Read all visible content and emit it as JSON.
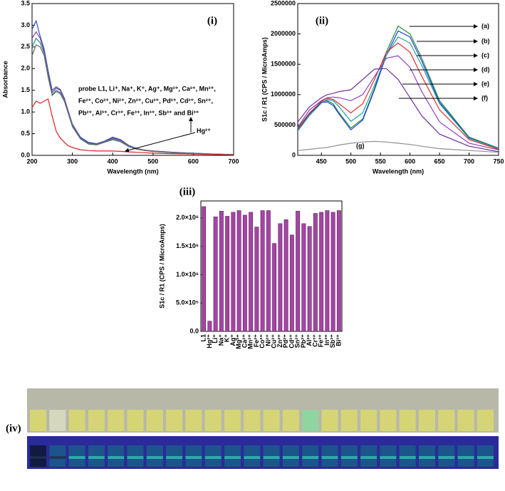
{
  "chart_data": [
    {
      "type": "line",
      "title": "(i)",
      "x_label": "Wavelength (nm)",
      "y_label": "Absorbance",
      "x": [
        200,
        210,
        220,
        230,
        240,
        250,
        260,
        270,
        280,
        290,
        300,
        320,
        340,
        360,
        380,
        400,
        420,
        440,
        460,
        480,
        500,
        550,
        600,
        650,
        700
      ],
      "series": [
        {
          "color": "#3050c0",
          "values": [
            2.9,
            3.1,
            2.75,
            2.45,
            1.95,
            1.5,
            1.58,
            1.52,
            1.32,
            1.02,
            0.72,
            0.42,
            0.3,
            0.27,
            0.33,
            0.42,
            0.36,
            0.23,
            0.16,
            0.12,
            0.1,
            0.07,
            0.05,
            0.03,
            0.02
          ]
        },
        {
          "color": "#8a3a9a",
          "values": [
            2.7,
            2.85,
            2.7,
            2.4,
            1.9,
            1.45,
            1.55,
            1.5,
            1.3,
            1.0,
            0.7,
            0.4,
            0.28,
            0.26,
            0.32,
            0.4,
            0.35,
            0.22,
            0.15,
            0.12,
            0.1,
            0.07,
            0.05,
            0.03,
            0.02
          ]
        },
        {
          "color": "#2a8a8a",
          "values": [
            2.5,
            2.7,
            2.6,
            2.35,
            1.85,
            1.4,
            1.5,
            1.45,
            1.27,
            0.98,
            0.68,
            0.39,
            0.27,
            0.25,
            0.31,
            0.38,
            0.33,
            0.21,
            0.15,
            0.11,
            0.09,
            0.06,
            0.05,
            0.03,
            0.02
          ]
        },
        {
          "color": "#6a6a6a",
          "values": [
            2.3,
            2.55,
            2.5,
            2.3,
            1.8,
            1.38,
            1.47,
            1.42,
            1.25,
            0.96,
            0.66,
            0.38,
            0.26,
            0.24,
            0.3,
            0.36,
            0.31,
            0.2,
            0.14,
            0.11,
            0.09,
            0.06,
            0.04,
            0.03,
            0.02
          ]
        },
        {
          "color": "#e02020",
          "values": [
            1.1,
            1.25,
            1.2,
            1.25,
            1.3,
            0.9,
            0.55,
            0.4,
            0.3,
            0.22,
            0.18,
            0.13,
            0.11,
            0.1,
            0.1,
            0.1,
            0.09,
            0.08,
            0.07,
            0.06,
            0.05,
            0.04,
            0.03,
            0.02,
            0.01
          ]
        }
      ],
      "xlim": [
        200,
        700
      ],
      "xticks": [
        200,
        300,
        400,
        500,
        600,
        700
      ],
      "ylim": [
        0,
        3.5
      ],
      "yticks": [
        {
          "value": 0,
          "label": "0.0"
        },
        {
          "value": 0.5,
          "label": "0.5"
        },
        {
          "value": 1,
          "label": "1.0"
        },
        {
          "value": 1.5,
          "label": "1.5"
        },
        {
          "value": 2,
          "label": "2.0"
        },
        {
          "value": 2.5,
          "label": "2.5"
        },
        {
          "value": 3,
          "label": "3.0"
        },
        {
          "value": 3.5,
          "label": "3.5"
        }
      ],
      "annotations": [
        "probe L1, Li⁺, Na⁺, K⁺, Ag⁺, Mg²⁺, Ca²⁺, Mn²⁺,",
        "Fe²⁺, Co²⁺, Ni²⁺, Zn²⁺, Cu²⁺, Pd²⁺, Cd²⁺, Sn²⁺,",
        "Pb²⁺, Al³⁺, Cr³⁺, Fe³⁺, In³⁺, Sb³⁺ and Bi³⁺",
        "Hg²⁺"
      ]
    },
    {
      "type": "line",
      "title": "(ii)",
      "x_label": "Wavelength (nm)",
      "y_label": "S1c / R1 (CPS / MicroAmps)",
      "x": [
        410,
        430,
        450,
        460,
        470,
        480,
        500,
        520,
        540,
        560,
        580,
        600,
        620,
        650,
        700,
        750
      ],
      "series": [
        {
          "color": "#208a40",
          "values": [
            450000,
            700000,
            880000,
            900000,
            850000,
            700000,
            450000,
            600000,
            1100000,
            1700000,
            2130000,
            2000000,
            1600000,
            900000,
            300000,
            120000
          ]
        },
        {
          "color": "#2040d0",
          "values": [
            420000,
            680000,
            870000,
            880000,
            820000,
            680000,
            420000,
            580000,
            1080000,
            1650000,
            2050000,
            1950000,
            1550000,
            870000,
            290000,
            110000
          ]
        },
        {
          "color": "#20a0a0",
          "values": [
            400000,
            660000,
            860000,
            920000,
            900000,
            800000,
            560000,
            700000,
            1150000,
            1650000,
            1950000,
            1850000,
            1480000,
            850000,
            280000,
            110000
          ]
        },
        {
          "color": "#e03030",
          "values": [
            430000,
            700000,
            890000,
            940000,
            920000,
            850000,
            700000,
            850000,
            1250000,
            1700000,
            1850000,
            1700000,
            1300000,
            750000,
            260000,
            100000
          ]
        },
        {
          "color": "#9040c0",
          "values": [
            460000,
            750000,
            900000,
            950000,
            960000,
            950000,
            900000,
            1000000,
            1300000,
            1600000,
            1640000,
            1450000,
            1050000,
            550000,
            200000,
            90000
          ]
        },
        {
          "color": "#7030a0",
          "values": [
            550000,
            800000,
            950000,
            1000000,
            1020000,
            1050000,
            1080000,
            1250000,
            1420000,
            1430000,
            1250000,
            950000,
            650000,
            350000,
            150000,
            60000
          ]
        },
        {
          "color": "#909090",
          "values": [
            80000,
            100000,
            120000,
            130000,
            150000,
            170000,
            200000,
            220000,
            230000,
            220000,
            200000,
            180000,
            150000,
            110000,
            80000,
            50000
          ]
        }
      ],
      "xlim": [
        410,
        750
      ],
      "xticks": [
        450,
        500,
        550,
        600,
        650,
        700,
        750
      ],
      "ylim": [
        0,
        2500000
      ],
      "yticks": [
        0,
        500000,
        1000000,
        1500000,
        2000000,
        2500000
      ],
      "annotations": [
        "(a)",
        "(b)",
        "(c)",
        "(d)",
        "(e)",
        "(f)",
        "(g)"
      ]
    },
    {
      "type": "bar",
      "title": "(iii)",
      "y_label": "S1c / R1 (CPS / MicroAmps)",
      "color": "#a545a5",
      "categories": [
        "L1",
        "Hg²⁺",
        "Li⁺",
        "Na⁺",
        "K⁺",
        "Ag⁺",
        "Mg²⁺",
        "Ca²⁺",
        "Mn²⁺",
        "Fe²⁺",
        "Co²⁺",
        "Ni²⁺",
        "Cu²⁺",
        "Zn²⁺",
        "Pd²⁺",
        "Cd²⁺",
        "Sn²⁺",
        "Pb²⁺",
        "Al³⁺",
        "Cr³⁺",
        "Fe³⁺",
        "In³⁺",
        "Sb³⁺",
        "Bi³⁺"
      ],
      "values": [
        2200000,
        180000,
        2020000,
        2120000,
        2030000,
        2100000,
        2130000,
        2050000,
        2100000,
        1840000,
        2130000,
        2130000,
        1550000,
        1900000,
        1970000,
        1700000,
        2120000,
        1900000,
        1850000,
        2080000,
        2100000,
        2130000,
        2100000,
        2130000
      ],
      "ylim": [
        0,
        2300000
      ],
      "yticks": [
        {
          "value": 0,
          "label": "0.0"
        },
        {
          "value": 500000,
          "label": "5.0×10⁵"
        },
        {
          "value": 1000000,
          "label": "1.0×10⁶"
        },
        {
          "value": 1500000,
          "label": "1.5×10⁶"
        },
        {
          "value": 2000000,
          "label": "2.0×10⁶"
        }
      ]
    }
  ],
  "photo": {
    "label": "(iv)"
  }
}
